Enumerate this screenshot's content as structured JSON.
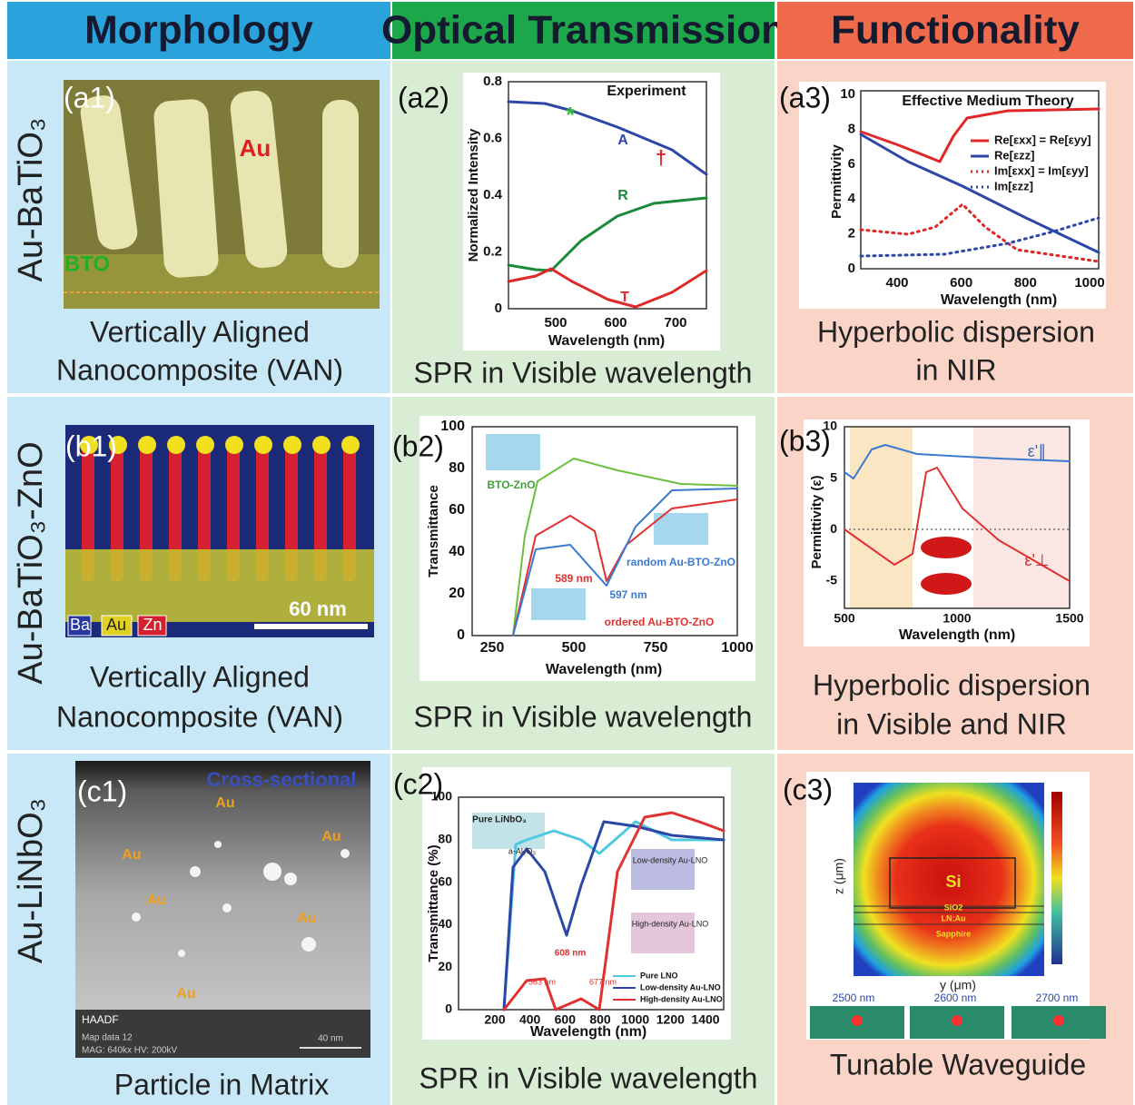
{
  "headers": [
    "Morphology",
    "Optical Transmission",
    "Functionality"
  ],
  "rows": [
    {
      "label": "Au-BaTiO₃",
      "panels": [
        {
          "label": "(a1)",
          "annotations": [
            "Au",
            "BTO"
          ],
          "caption": [
            "Vertically Aligned",
            "Nanocomposite (VAN)"
          ]
        },
        {
          "label": "(a2)",
          "title": "Experiment",
          "annotations": [
            "A",
            "R",
            "T",
            "*",
            "†"
          ],
          "ylabel": "Normalized Intensity",
          "xlabel": "Wavelength (nm)",
          "yticks": [
            "0.8",
            "0.6",
            "0.4",
            "0.2",
            "0"
          ],
          "xticks": [
            "500",
            "600",
            "700"
          ],
          "caption": [
            "SPR in Visible wavelength"
          ]
        },
        {
          "label": "(a3)",
          "title": "Effective Medium Theory",
          "legend": [
            "Re[εxx] = Re[εyy]",
            "Re[εzz]",
            "Im[εxx] = Im[εyy]",
            "Im[εzz]"
          ],
          "ylabel": "Permittivity",
          "xlabel": "Wavelength (nm)",
          "yticks": [
            "10",
            "8",
            "6",
            "4",
            "2",
            "0"
          ],
          "xticks": [
            "400",
            "600",
            "800",
            "1000"
          ],
          "caption": [
            "Hyperbolic dispersion",
            "in NIR"
          ]
        }
      ]
    },
    {
      "label": "Au-BaTiO₃-ZnO",
      "panels": [
        {
          "label": "(b1)",
          "annotations": [
            "60 nm",
            "Ba",
            "Au",
            "Zn"
          ],
          "caption": [
            "Vertically Aligned",
            "Nanocomposite (VAN)"
          ]
        },
        {
          "label": "(b2)",
          "annotations": [
            "BTO-ZnO",
            "random Au-BTO-ZnO",
            "ordered Au-BTO-ZnO",
            "589 nm",
            "597 nm"
          ],
          "ylabel": "Transmittance",
          "xlabel": "Wavelength (nm)",
          "yticks": [
            "100",
            "80",
            "60",
            "40",
            "20",
            "0"
          ],
          "xticks": [
            "250",
            "500",
            "750",
            "1000"
          ],
          "caption": [
            "SPR in Visible wavelength"
          ]
        },
        {
          "label": "(b3)",
          "annotations": [
            "ε'∥",
            "ε'⊥"
          ],
          "ylabel": "Permittivity (ε)",
          "xlabel": "Wavelength (nm)",
          "yticks": [
            "10",
            "5",
            "0",
            "-5"
          ],
          "xticks": [
            "500",
            "1000",
            "1500"
          ],
          "caption": [
            "Hyperbolic dispersion",
            "in Visible and NIR"
          ]
        }
      ]
    },
    {
      "label": "Au-LiNbO₃",
      "panels": [
        {
          "label": "(c1)",
          "annotations": [
            "Cross-sectional",
            "Au",
            "Au",
            "Au",
            "Au",
            "Au",
            "Au",
            "HAADF",
            "Map data 12",
            "MAG: 640kx HV: 200kV",
            "40 nm"
          ],
          "caption": [
            "Particle in Matrix"
          ]
        },
        {
          "label": "(c2)",
          "annotations": [
            "Pure LiNbO₃",
            "a-Al₂O₃",
            "Low-density Au-LNO",
            "High-density Au-LNO",
            "608 nm",
            "563 nm",
            "677 nm"
          ],
          "legend": [
            "Pure LNO",
            "Low-density Au-LNO",
            "High-density Au-LNO"
          ],
          "ylabel": "Transmittance (%)",
          "xlabel": "Wavelength (nm)",
          "yticks": [
            "100",
            "80",
            "60",
            "40",
            "20",
            "0"
          ],
          "xticks": [
            "200",
            "400",
            "600",
            "800",
            "1000",
            "1200",
            "1400"
          ],
          "caption": [
            "SPR in Visible wavelength"
          ]
        },
        {
          "label": "(c3)",
          "annotations": [
            "Si",
            "SiO2",
            "LN:Au",
            "Sapphire",
            "z (μm)",
            "y (μm)",
            "2500 nm",
            "2600 nm",
            "2700 nm"
          ],
          "caption": [
            "Tunable Waveguide"
          ]
        }
      ]
    }
  ]
}
